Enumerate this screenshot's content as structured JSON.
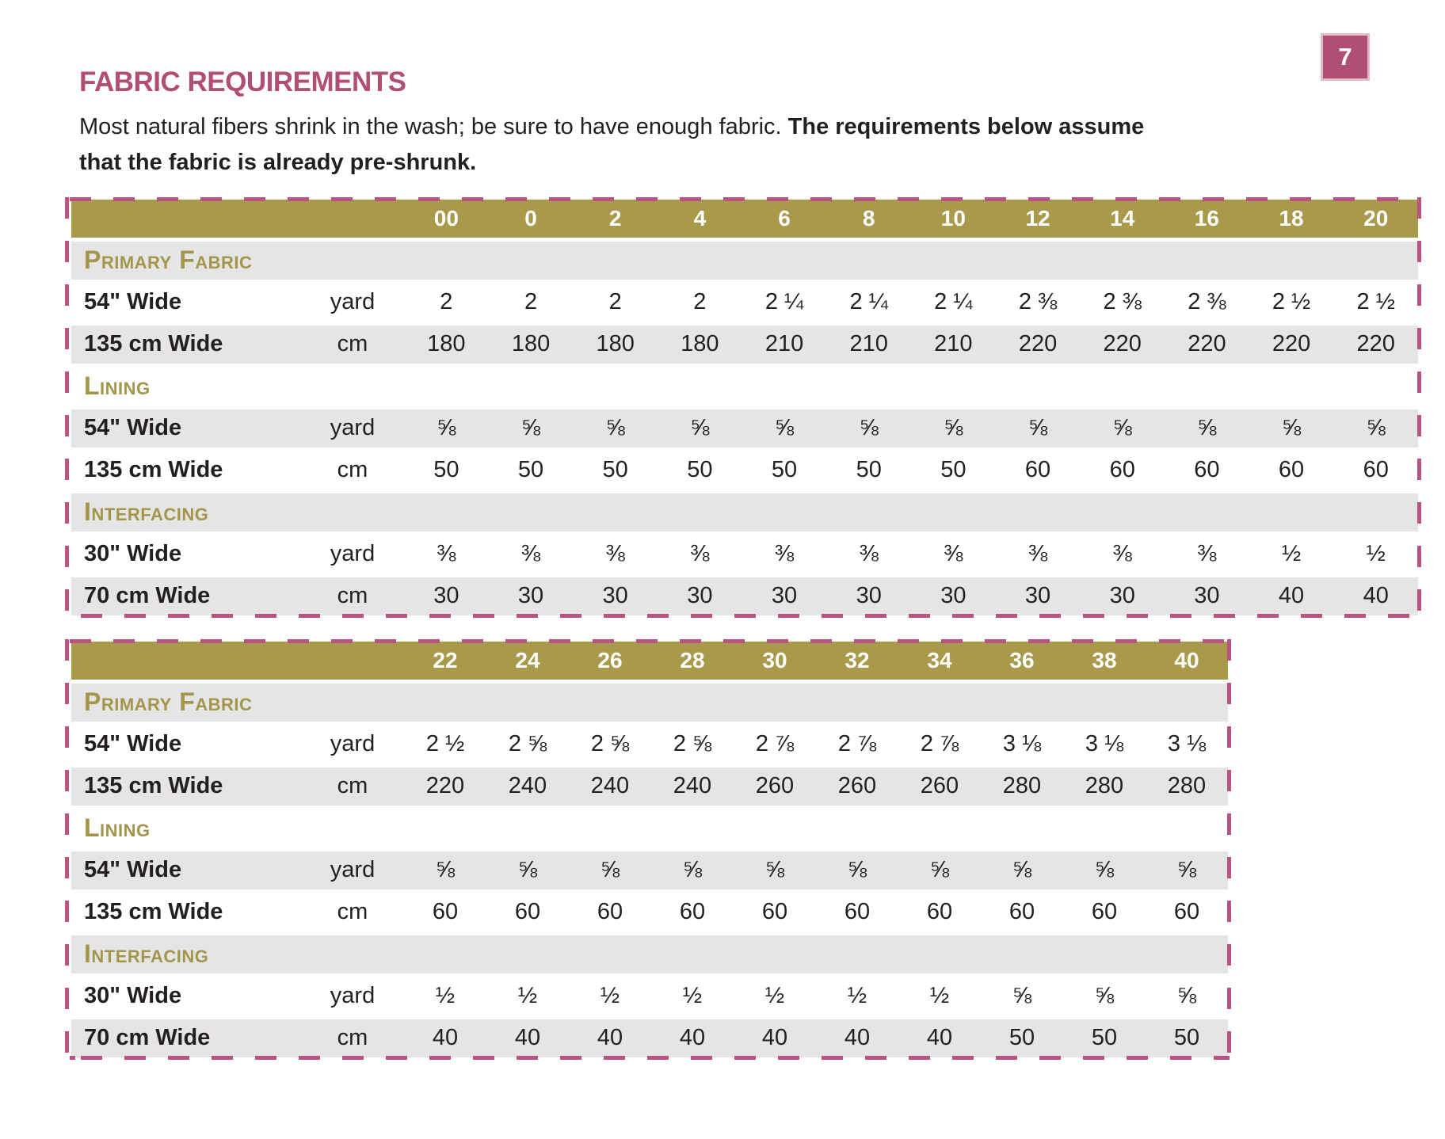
{
  "page": {
    "number": "7",
    "title": "FABRIC REQUIREMENTS",
    "intro_normal": "Most natural fibers shrink in the wash; be sure to have enough fabric. ",
    "intro_bold_line1": "The requirements below assume",
    "intro_bold_line2": "that the fabric is already pre-shrunk.",
    "colors": {
      "accent_pink": "#b14e74",
      "dash_pink": "#bb5380",
      "header_olive": "#a89a4a",
      "row_gray": "#e5e5e5",
      "text_ink": "#231f20"
    }
  },
  "tables": [
    {
      "name": "sizes-00-20",
      "sizes": [
        "00",
        "0",
        "2",
        "4",
        "6",
        "8",
        "10",
        "12",
        "14",
        "16",
        "18",
        "20"
      ],
      "sections": [
        {
          "label": "Primary Fabric",
          "rows": [
            {
              "label": "54\" Wide",
              "unit": "yard",
              "values": [
                "2",
                "2",
                "2",
                "2",
                "2 ¼",
                "2 ¼",
                "2 ¼",
                "2 ⅜",
                "2 ⅜",
                "2 ⅜",
                "2 ½",
                "2 ½"
              ]
            },
            {
              "label": "135 cm Wide",
              "unit": "cm",
              "values": [
                "180",
                "180",
                "180",
                "180",
                "210",
                "210",
                "210",
                "220",
                "220",
                "220",
                "220",
                "220"
              ]
            }
          ]
        },
        {
          "label": "Lining",
          "rows": [
            {
              "label": "54\" Wide",
              "unit": "yard",
              "values": [
                "⅝",
                "⅝",
                "⅝",
                "⅝",
                "⅝",
                "⅝",
                "⅝",
                "⅝",
                "⅝",
                "⅝",
                "⅝",
                "⅝"
              ]
            },
            {
              "label": "135 cm Wide",
              "unit": "cm",
              "values": [
                "50",
                "50",
                "50",
                "50",
                "50",
                "50",
                "50",
                "60",
                "60",
                "60",
                "60",
                "60"
              ]
            }
          ]
        },
        {
          "label": "Interfacing",
          "rows": [
            {
              "label": "30\" Wide",
              "unit": "yard",
              "values": [
                "⅜",
                "⅜",
                "⅜",
                "⅜",
                "⅜",
                "⅜",
                "⅜",
                "⅜",
                "⅜",
                "⅜",
                "½",
                "½"
              ]
            },
            {
              "label": "70 cm Wide",
              "unit": "cm",
              "values": [
                "30",
                "30",
                "30",
                "30",
                "30",
                "30",
                "30",
                "30",
                "30",
                "30",
                "40",
                "40"
              ]
            }
          ]
        }
      ]
    },
    {
      "name": "sizes-22-40",
      "sizes": [
        "22",
        "24",
        "26",
        "28",
        "30",
        "32",
        "34",
        "36",
        "38",
        "40"
      ],
      "sections": [
        {
          "label": "Primary Fabric",
          "rows": [
            {
              "label": "54\" Wide",
              "unit": "yard",
              "values": [
                "2 ½",
                "2 ⅝",
                "2 ⅝",
                "2 ⅝",
                "2 ⅞",
                "2 ⅞",
                "2 ⅞",
                "3 ⅛",
                "3 ⅛",
                "3 ⅛"
              ]
            },
            {
              "label": "135 cm Wide",
              "unit": "cm",
              "values": [
                "220",
                "240",
                "240",
                "240",
                "260",
                "260",
                "260",
                "280",
                "280",
                "280"
              ]
            }
          ]
        },
        {
          "label": "Lining",
          "rows": [
            {
              "label": "54\" Wide",
              "unit": "yard",
              "values": [
                "⅝",
                "⅝",
                "⅝",
                "⅝",
                "⅝",
                "⅝",
                "⅝",
                "⅝",
                "⅝",
                "⅝"
              ]
            },
            {
              "label": "135 cm Wide",
              "unit": "cm",
              "values": [
                "60",
                "60",
                "60",
                "60",
                "60",
                "60",
                "60",
                "60",
                "60",
                "60"
              ]
            }
          ]
        },
        {
          "label": "Interfacing",
          "rows": [
            {
              "label": "30\" Wide",
              "unit": "yard",
              "values": [
                "½",
                "½",
                "½",
                "½",
                "½",
                "½",
                "½",
                "⅝",
                "⅝",
                "⅝"
              ]
            },
            {
              "label": "70 cm Wide",
              "unit": "cm",
              "values": [
                "40",
                "40",
                "40",
                "40",
                "40",
                "40",
                "40",
                "50",
                "50",
                "50"
              ]
            }
          ]
        }
      ]
    }
  ]
}
